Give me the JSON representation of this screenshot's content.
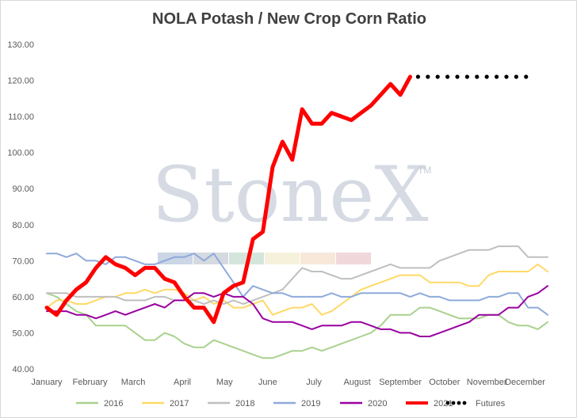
{
  "chart_data": {
    "type": "line",
    "title": "NOLA Potash / New Crop Corn Ratio",
    "xlabel": "",
    "ylabel": "",
    "ylim": [
      40,
      130
    ],
    "yticks": [
      "40.00",
      "50.00",
      "60.00",
      "70.00",
      "80.00",
      "90.00",
      "100.00",
      "110.00",
      "120.00",
      "130.00"
    ],
    "xlim": [
      1,
      52
    ],
    "month_labels": [
      {
        "label": "January",
        "week": 1
      },
      {
        "label": "February",
        "week": 5.4
      },
      {
        "label": "March",
        "week": 9.8
      },
      {
        "label": "April",
        "week": 14.8
      },
      {
        "label": "May",
        "week": 19.1
      },
      {
        "label": "June",
        "week": 23.5
      },
      {
        "label": "July",
        "week": 28.2
      },
      {
        "label": "August",
        "week": 32.6
      },
      {
        "label": "September",
        "week": 37.0
      },
      {
        "label": "October",
        "week": 41.5
      },
      {
        "label": "November",
        "week": 45.8
      },
      {
        "label": "December",
        "week": 49.7
      }
    ],
    "grid": false,
    "legend_position": "bottom",
    "watermark": "StoneX",
    "watermark_mark": "TM",
    "series": [
      {
        "name": "2016",
        "color": "#a9d18e",
        "width": 2,
        "x": [
          1,
          2,
          3,
          4,
          5,
          6,
          7,
          8,
          9,
          10,
          11,
          12,
          13,
          14,
          15,
          16,
          17,
          18,
          19,
          20,
          21,
          22,
          23,
          24,
          25,
          26,
          27,
          28,
          29,
          30,
          31,
          32,
          33,
          34,
          35,
          36,
          37,
          38,
          39,
          40,
          41,
          42,
          43,
          44,
          45,
          46,
          47,
          48,
          49,
          50,
          51,
          52
        ],
        "y": [
          61,
          60,
          58,
          56,
          55,
          52,
          52,
          52,
          52,
          50,
          48,
          48,
          50,
          49,
          47,
          46,
          46,
          48,
          47,
          46,
          45,
          44,
          43,
          43,
          44,
          45,
          45,
          46,
          45,
          46,
          47,
          48,
          49,
          50,
          52,
          55,
          55,
          55,
          57,
          57,
          56,
          55,
          54,
          54,
          54,
          55,
          55,
          53,
          52,
          52,
          51,
          53
        ]
      },
      {
        "name": "2017",
        "color": "#ffd966",
        "width": 2,
        "x": [
          1,
          2,
          3,
          4,
          5,
          6,
          7,
          8,
          9,
          10,
          11,
          12,
          13,
          14,
          15,
          16,
          17,
          18,
          19,
          20,
          21,
          22,
          23,
          24,
          25,
          26,
          27,
          28,
          29,
          30,
          31,
          32,
          33,
          34,
          35,
          36,
          37,
          38,
          39,
          40,
          41,
          42,
          43,
          44,
          45,
          46,
          47,
          48,
          49,
          50,
          51,
          52
        ],
        "y": [
          57,
          59,
          59,
          58,
          58,
          59,
          60,
          60,
          61,
          61,
          62,
          61,
          62,
          62,
          61,
          59,
          60,
          58,
          59,
          57,
          57,
          58,
          59,
          55,
          56,
          57,
          57,
          58,
          55,
          56,
          58,
          60,
          62,
          63,
          64,
          65,
          66,
          66,
          66,
          64,
          64,
          64,
          64,
          63,
          63,
          66,
          67,
          67,
          67,
          67,
          69,
          67
        ]
      },
      {
        "name": "2018",
        "color": "#bfbfbf",
        "width": 2,
        "x": [
          1,
          2,
          3,
          4,
          5,
          6,
          7,
          8,
          9,
          10,
          11,
          12,
          13,
          14,
          15,
          16,
          17,
          18,
          19,
          20,
          21,
          22,
          23,
          24,
          25,
          26,
          27,
          28,
          29,
          30,
          31,
          32,
          33,
          34,
          35,
          36,
          37,
          38,
          39,
          40,
          41,
          42,
          43,
          44,
          45,
          46,
          47,
          48,
          49,
          50,
          51,
          52
        ],
        "y": [
          61,
          61,
          61,
          60,
          60,
          60,
          60,
          60,
          59,
          59,
          59,
          60,
          60,
          59,
          59,
          59,
          58,
          59,
          58,
          59,
          58,
          59,
          60,
          61,
          62,
          65,
          68,
          67,
          67,
          66,
          65,
          65,
          66,
          67,
          68,
          69,
          68,
          68,
          68,
          68,
          70,
          71,
          72,
          73,
          73,
          73,
          74,
          74,
          74,
          71,
          71,
          71
        ]
      },
      {
        "name": "2019",
        "color": "#8eaadb",
        "width": 2,
        "x": [
          1,
          2,
          3,
          4,
          5,
          6,
          7,
          8,
          9,
          10,
          11,
          12,
          13,
          14,
          15,
          16,
          17,
          18,
          19,
          20,
          21,
          22,
          23,
          24,
          25,
          26,
          27,
          28,
          29,
          30,
          31,
          32,
          33,
          34,
          35,
          36,
          37,
          38,
          39,
          40,
          41,
          42,
          43,
          44,
          45,
          46,
          47,
          48,
          49,
          50,
          51,
          52
        ],
        "y": [
          72,
          72,
          71,
          72,
          70,
          70,
          69,
          71,
          71,
          70,
          69,
          69,
          70,
          71,
          71,
          72,
          70,
          72,
          68,
          64,
          60,
          63,
          62,
          61,
          61,
          60,
          60,
          60,
          60,
          61,
          60,
          60,
          61,
          61,
          61,
          61,
          61,
          60,
          61,
          60,
          60,
          59,
          59,
          59,
          59,
          60,
          60,
          61,
          61,
          57,
          57,
          55
        ]
      },
      {
        "name": "2020",
        "color": "#9900a0",
        "width": 2,
        "x": [
          1,
          2,
          3,
          4,
          5,
          6,
          7,
          8,
          9,
          10,
          11,
          12,
          13,
          14,
          15,
          16,
          17,
          18,
          19,
          20,
          21,
          22,
          23,
          24,
          25,
          26,
          27,
          28,
          29,
          30,
          31,
          32,
          33,
          34,
          35,
          36,
          37,
          38,
          39,
          40,
          41,
          42,
          43,
          44,
          45,
          46,
          47,
          48,
          49,
          50,
          51,
          52
        ],
        "y": [
          56,
          56,
          56,
          55,
          55,
          54,
          55,
          56,
          55,
          56,
          57,
          58,
          57,
          59,
          59,
          61,
          61,
          60,
          61,
          60,
          60,
          58,
          54,
          53,
          53,
          53,
          52,
          51,
          52,
          52,
          52,
          53,
          53,
          52,
          51,
          51,
          50,
          50,
          49,
          49,
          50,
          51,
          52,
          53,
          55,
          55,
          55,
          57,
          57,
          60,
          61,
          63
        ]
      },
      {
        "name": "2021",
        "color": "#ff0000",
        "width": 5,
        "x": [
          1,
          2,
          3,
          4,
          5,
          6,
          7,
          8,
          9,
          10,
          11,
          12,
          13,
          14,
          15,
          16,
          17,
          18,
          19,
          20,
          21,
          22,
          23,
          24,
          25,
          26,
          27,
          28,
          29,
          30,
          31,
          32,
          33,
          34,
          35,
          36,
          37,
          38
        ],
        "y": [
          57,
          55,
          59,
          62,
          64,
          68,
          71,
          69,
          68,
          66,
          68,
          68,
          65,
          64,
          60,
          57,
          57,
          53,
          61,
          63,
          64,
          76,
          78,
          96,
          103,
          98,
          112,
          108,
          108,
          111,
          110,
          109,
          111,
          113,
          116,
          119,
          116,
          121
        ]
      },
      {
        "name": "Futures",
        "color": "#000000",
        "width": 0,
        "dots": true,
        "x": [
          38.8,
          39.8,
          40.8,
          41.8,
          42.8,
          43.8,
          44.8,
          45.8,
          46.8,
          47.8,
          48.8,
          49.8
        ],
        "y": [
          121,
          121,
          121,
          121,
          121,
          121,
          121,
          121,
          121,
          121,
          121,
          121
        ]
      }
    ]
  }
}
